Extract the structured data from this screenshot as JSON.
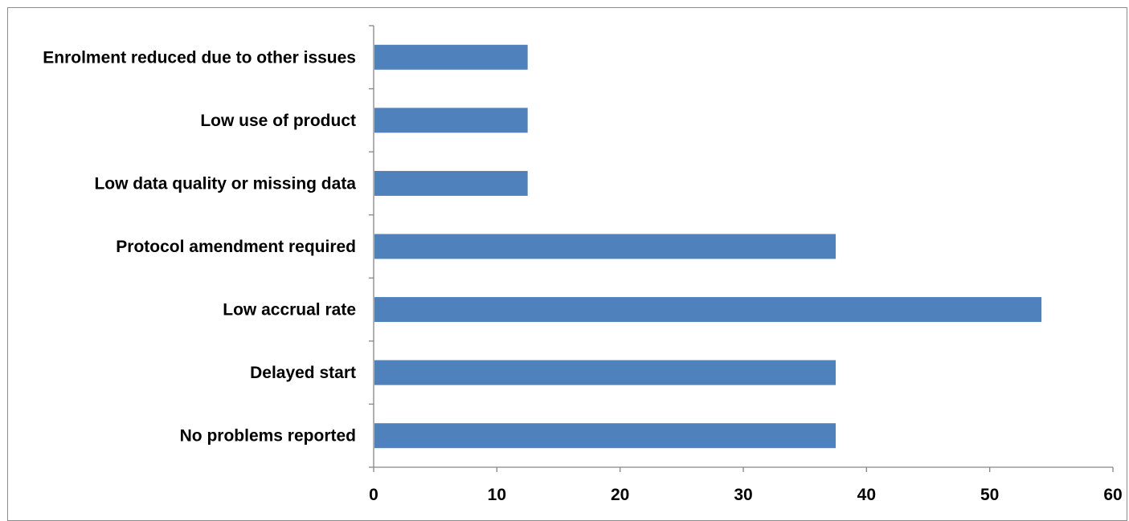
{
  "chart_data": {
    "type": "bar",
    "orientation": "horizontal",
    "categories": [
      "No problems reported",
      "Delayed start",
      "Low accrual rate",
      "Protocol amendment required",
      "Low data quality or missing data",
      "Low use of product",
      "Enrolment reduced due to other issues"
    ],
    "values": [
      37.5,
      37.5,
      54.2,
      37.5,
      12.5,
      12.5,
      12.5
    ],
    "xlim": [
      0,
      60
    ],
    "xticks": [
      0,
      10,
      20,
      30,
      40,
      50,
      60
    ],
    "title": "",
    "xlabel": "",
    "ylabel": "",
    "grid": false,
    "legend": "none",
    "bar_color": "#4f81bd",
    "axis_color": "#868686"
  }
}
